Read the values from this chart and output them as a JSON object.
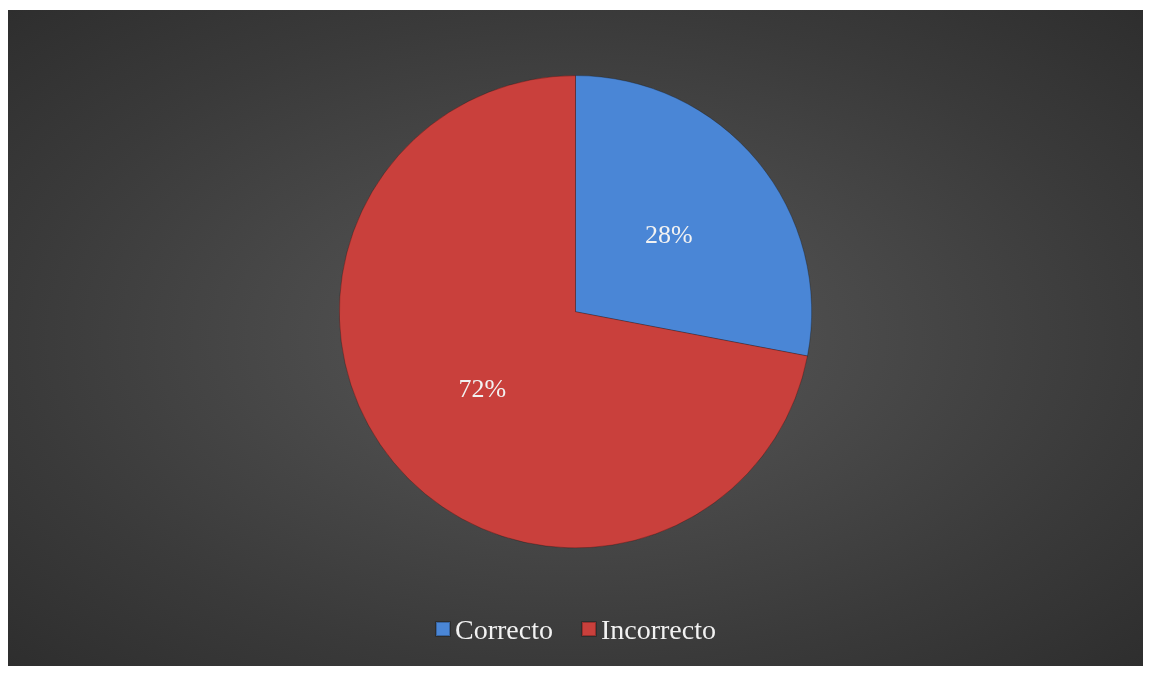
{
  "chart_data": {
    "type": "pie",
    "categories": [
      "Correcto",
      "Incorrecto"
    ],
    "values": [
      28,
      72
    ],
    "colors": [
      "#4a86d6",
      "#c9403c"
    ],
    "value_labels": [
      "28%",
      "72%"
    ],
    "legend": "bottom"
  }
}
